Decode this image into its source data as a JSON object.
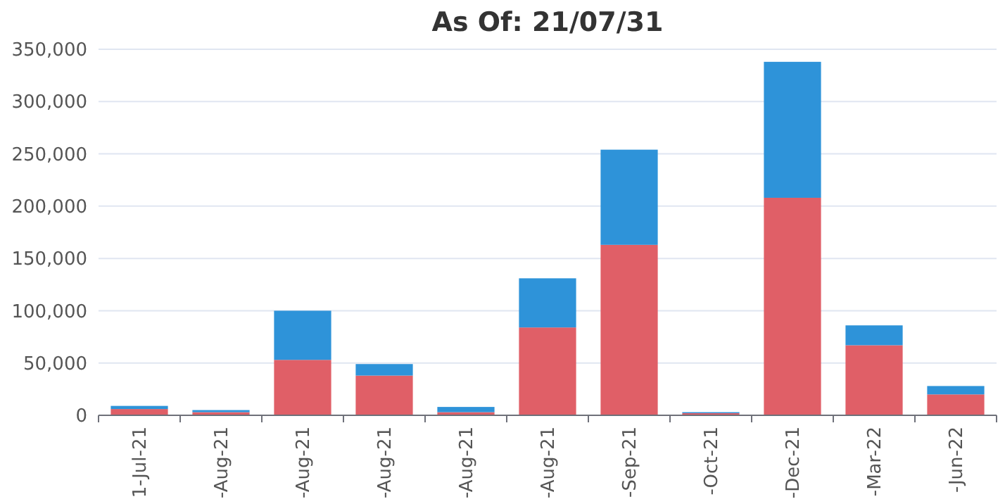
{
  "chart_data": {
    "type": "bar",
    "title": "As Of: 21/07/31",
    "stacked": true,
    "categories": [
      "1-Jul-21",
      "-Aug-21",
      "-Aug-21",
      "-Aug-21",
      "-Aug-21",
      "-Aug-21",
      "-Sep-21",
      "-Oct-21",
      "-Dec-21",
      "-Mar-22",
      "-Jun-22"
    ],
    "series": [
      {
        "color": "#e05f67",
        "values": [
          6000,
          3000,
          53000,
          38000,
          3000,
          84000,
          163000,
          2000,
          208000,
          67000,
          20000
        ]
      },
      {
        "color": "#2e93d9",
        "values": [
          3000,
          2000,
          47000,
          11000,
          5000,
          47000,
          91000,
          1000,
          130000,
          19000,
          8000
        ]
      }
    ],
    "ylim": [
      0,
      350000
    ],
    "yticks": [
      {
        "value": 0,
        "label": "0"
      },
      {
        "value": 50000,
        "label": "50,000"
      },
      {
        "value": 100000,
        "label": "100,000"
      },
      {
        "value": 150000,
        "label": "150,000"
      },
      {
        "value": 200000,
        "label": "200,000"
      },
      {
        "value": 250000,
        "label": "250,000"
      },
      {
        "value": 300000,
        "label": "300,000"
      },
      {
        "value": 350000,
        "label": "350,000"
      }
    ],
    "grid": "y"
  }
}
